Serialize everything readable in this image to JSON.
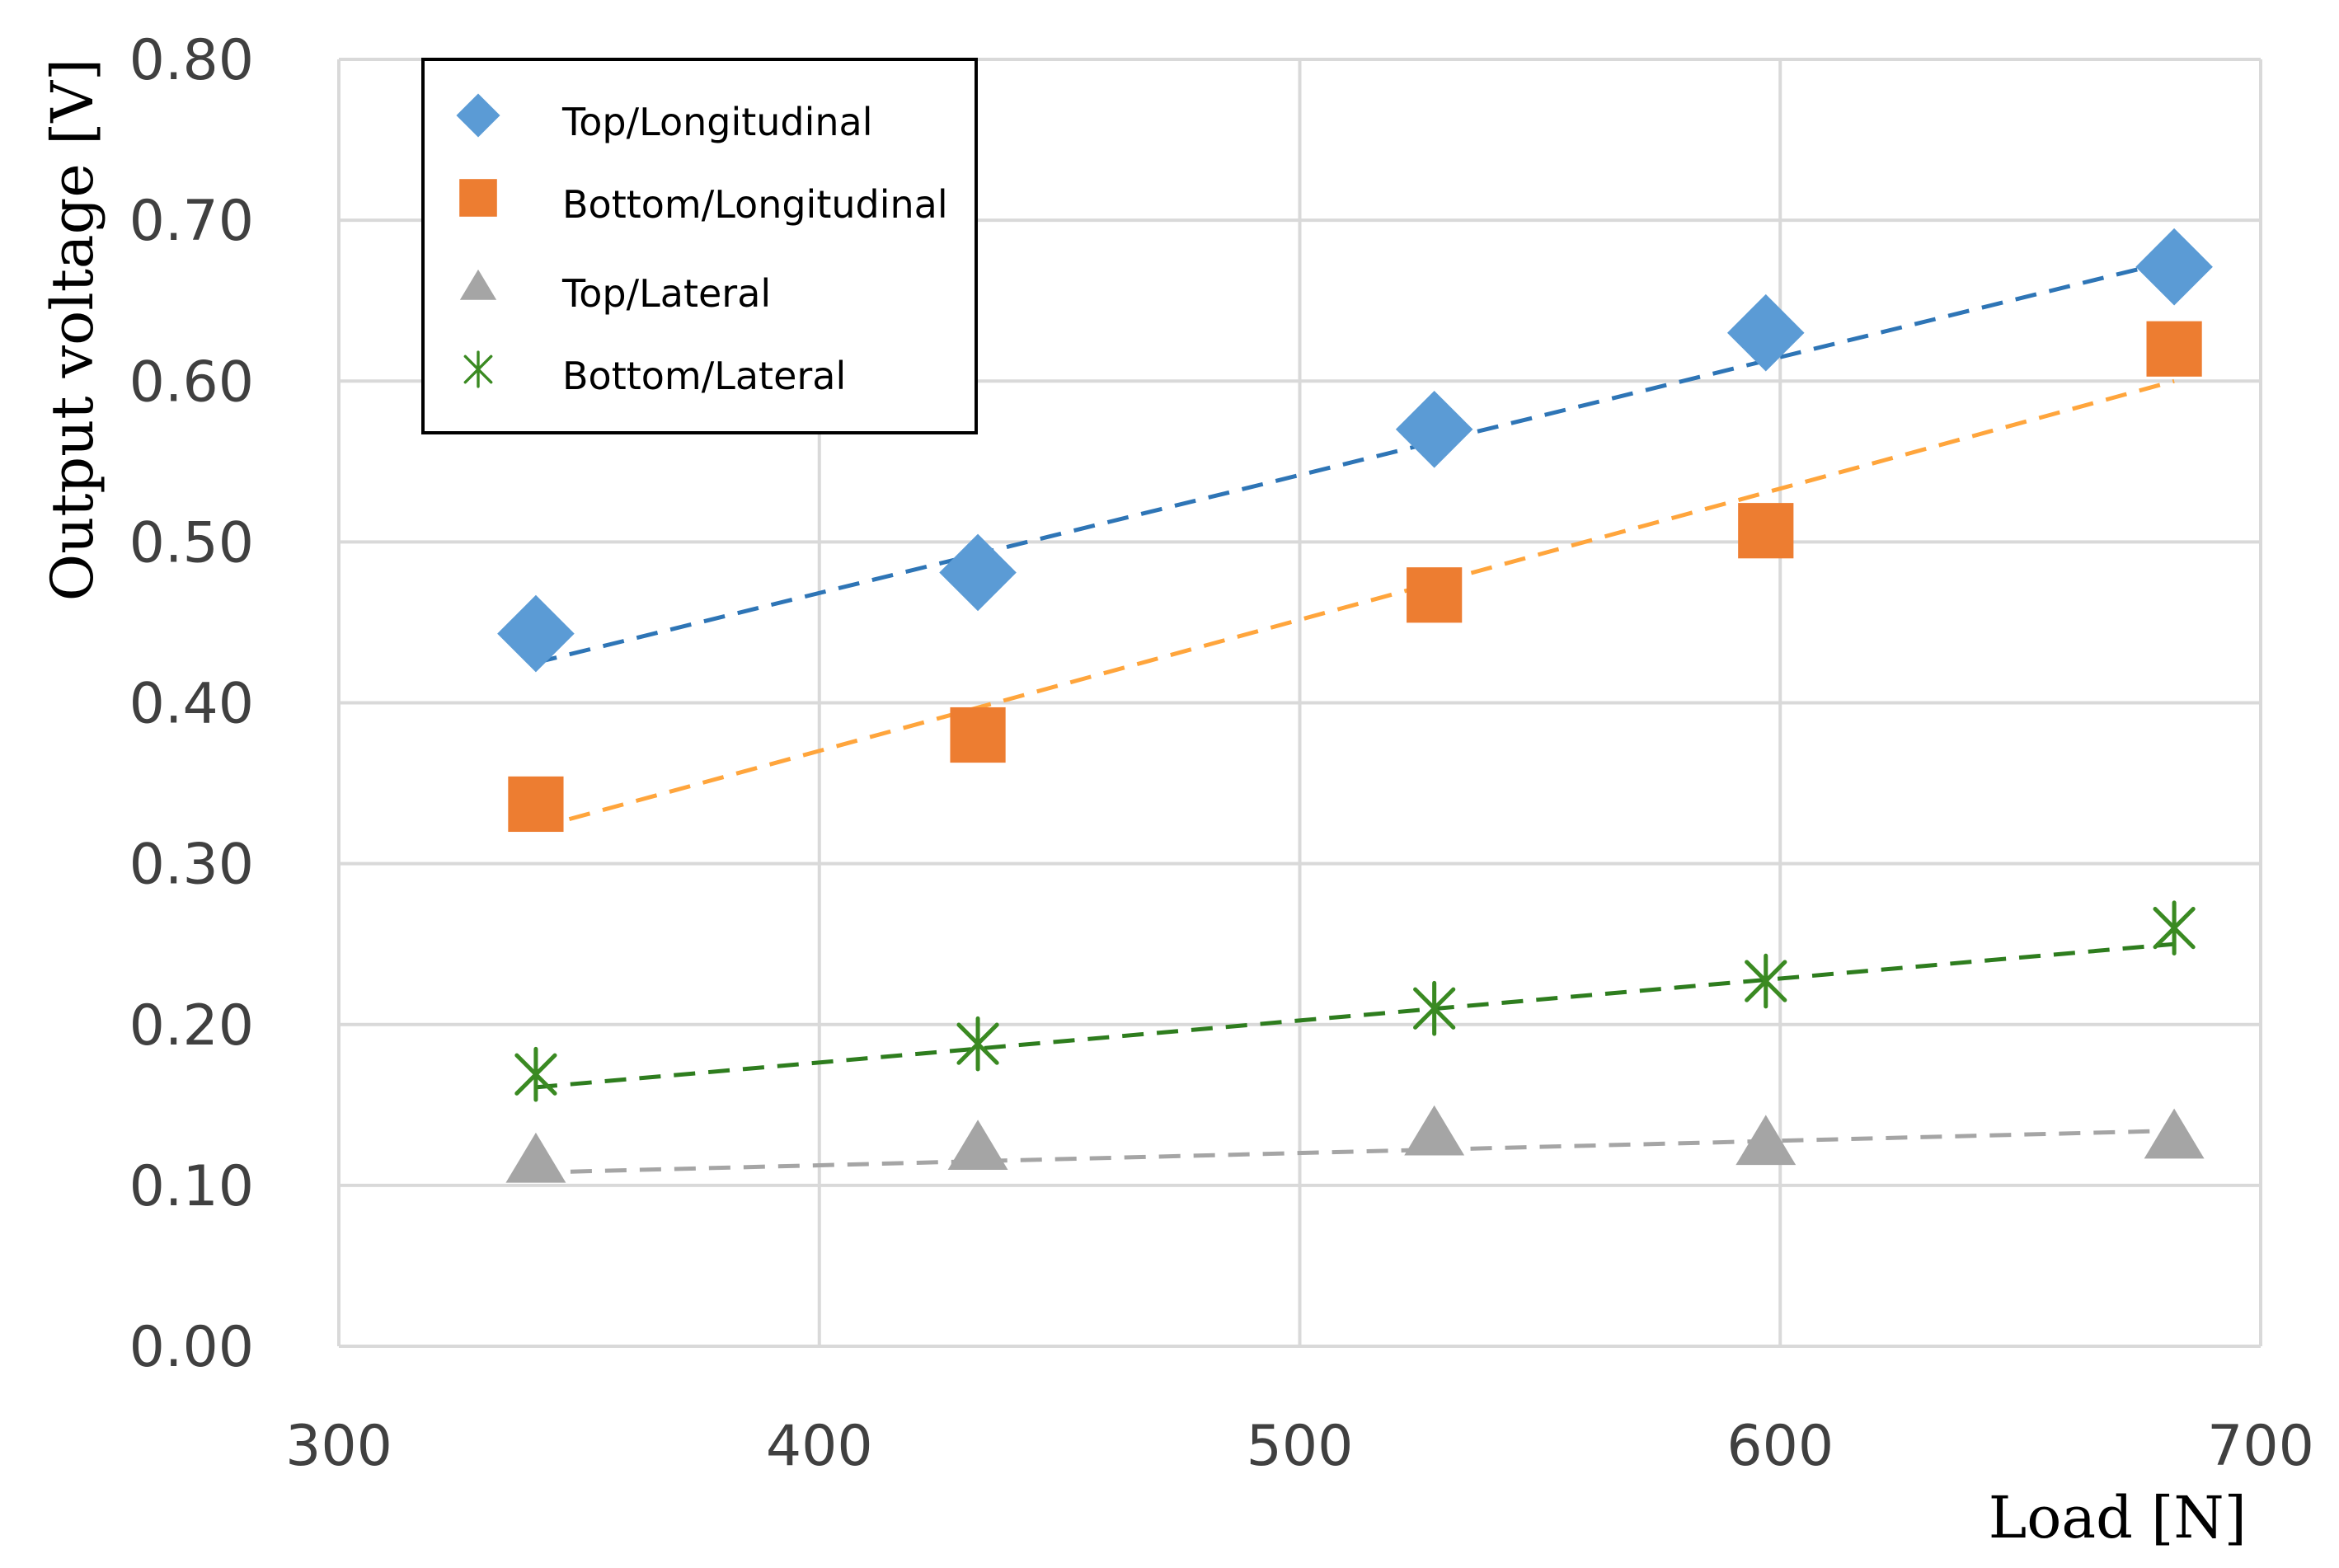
{
  "chart_data": {
    "type": "scatter",
    "title": "",
    "xlabel": "Load [N]",
    "ylabel": "Output voltage [V]",
    "xlim": [
      300,
      700
    ],
    "ylim": [
      0.0,
      0.8
    ],
    "xticks": [
      "300",
      "400",
      "500",
      "600",
      "700"
    ],
    "yticks": [
      "0.00",
      "0.10",
      "0.20",
      "0.30",
      "0.40",
      "0.50",
      "0.60",
      "0.70",
      "0.80"
    ],
    "grid": true,
    "legend_position": "top-left",
    "series": [
      {
        "name": "Top/Longitudinal",
        "marker": "diamond",
        "color": "#5B9BD5",
        "trend_color": "#2E75B6",
        "x": [
          341,
          433,
          528,
          597,
          682
        ],
        "y": [
          0.443,
          0.481,
          0.57,
          0.63,
          0.671
        ],
        "trend": [
          [
            341,
            0.425
          ],
          [
            682,
            0.675
          ]
        ]
      },
      {
        "name": "Bottom/Longitudinal",
        "marker": "square",
        "color": "#ED7D31",
        "trend_color": "#FFA53C",
        "x": [
          341,
          433,
          528,
          597,
          682
        ],
        "y": [
          0.337,
          0.38,
          0.467,
          0.507,
          0.62
        ],
        "trend": [
          [
            341,
            0.322
          ],
          [
            682,
            0.6
          ]
        ]
      },
      {
        "name": "Top/Lateral",
        "marker": "triangle",
        "color": "#A5A5A5",
        "trend_color": "#A5A5A5",
        "x": [
          341,
          433,
          528,
          597,
          682
        ],
        "y": [
          0.115,
          0.123,
          0.132,
          0.126,
          0.13
        ],
        "trend": [
          [
            341,
            0.108
          ],
          [
            682,
            0.134
          ]
        ]
      },
      {
        "name": "Bottom/Lateral",
        "marker": "star",
        "color": "#3A8A22",
        "trend_color": "#2E7D1E",
        "x": [
          341,
          433,
          528,
          597,
          682
        ],
        "y": [
          0.169,
          0.188,
          0.21,
          0.227,
          0.26
        ],
        "trend": [
          [
            341,
            0.161
          ],
          [
            682,
            0.25
          ]
        ]
      }
    ]
  }
}
